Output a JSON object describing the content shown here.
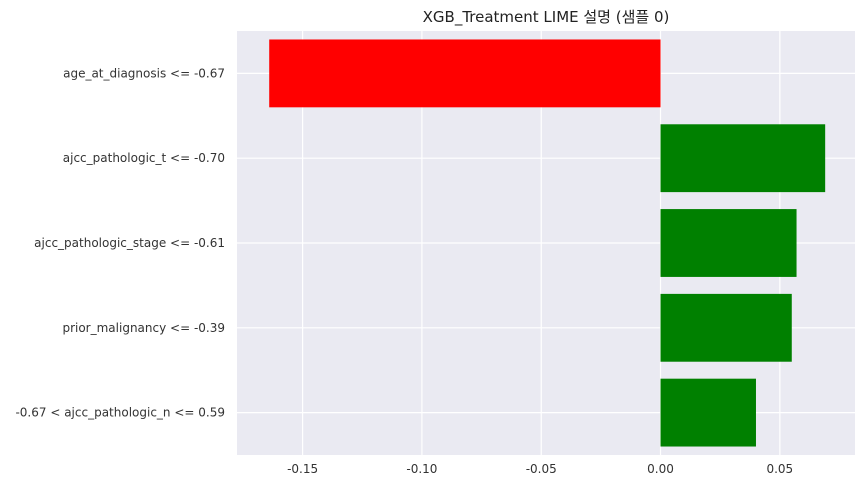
{
  "chart_data": {
    "type": "bar",
    "orientation": "horizontal",
    "title": "XGB_Treatment LIME 설명 (샘플 0)",
    "xlabel": "",
    "ylabel": "",
    "categories": [
      "age_at_diagnosis <= -0.67",
      "ajcc_pathologic_t <= -0.70",
      "ajcc_pathologic_stage <= -0.61",
      "prior_malignancy <= -0.39",
      "-0.67 < ajcc_pathologic_n <= 0.59"
    ],
    "values": [
      -0.164,
      0.069,
      0.057,
      0.055,
      0.04
    ],
    "colors": [
      "#ff0000",
      "#008000",
      "#008000",
      "#008000",
      "#008000"
    ],
    "xlim": [
      -0.1775,
      0.0815
    ],
    "xticks": [
      -0.15,
      -0.1,
      -0.05,
      0.0,
      0.05
    ],
    "xtick_labels": [
      "-0.15",
      "-0.10",
      "-0.05",
      "0.00",
      "0.05"
    ],
    "grid": true,
    "background": "#eaeaf2"
  }
}
